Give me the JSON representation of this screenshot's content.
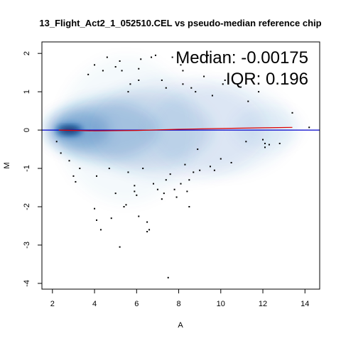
{
  "chart_data": {
    "type": "scatter",
    "title": "13_Flight_Act2_1_052510.CEL vs pseudo-median reference chip",
    "xlabel": "A",
    "ylabel": "M",
    "xlim": [
      1.5,
      14.7
    ],
    "ylim": [
      -4.15,
      2.3
    ],
    "x_ticks": [
      2,
      4,
      6,
      8,
      10,
      12,
      14
    ],
    "y_ticks": [
      2,
      1,
      0,
      -1,
      -2,
      -3,
      -4
    ],
    "annotations": {
      "median_label": "Median: -0.00175",
      "iqr_label": "IQR: 0.196"
    },
    "reference_line": {
      "y": 0,
      "color": "#0000cc"
    },
    "loess_line": {
      "color": "#dd0000",
      "points": [
        [
          2.3,
          0.0
        ],
        [
          4,
          -0.02
        ],
        [
          6,
          -0.01
        ],
        [
          8,
          0.02
        ],
        [
          10,
          0.04
        ],
        [
          12,
          0.06
        ],
        [
          13.4,
          0.07
        ]
      ]
    },
    "density": {
      "color": "#2a6db5",
      "peak": [
        2.8,
        0.0
      ],
      "blobs": [
        {
          "x": 2.8,
          "y": 0.0,
          "rx": 0.7,
          "ry": 0.2,
          "alpha": 1.0
        },
        {
          "x": 3.2,
          "y": 0.0,
          "rx": 1.5,
          "ry": 0.48,
          "alpha": 0.55
        },
        {
          "x": 4.4,
          "y": 0.0,
          "rx": 2.6,
          "ry": 0.75,
          "alpha": 0.38
        },
        {
          "x": 6.0,
          "y": 0.0,
          "rx": 3.6,
          "ry": 1.0,
          "alpha": 0.24
        },
        {
          "x": 8.0,
          "y": 0.02,
          "rx": 4.2,
          "ry": 1.3,
          "alpha": 0.16
        },
        {
          "x": 10.0,
          "y": 0.03,
          "rx": 3.4,
          "ry": 1.2,
          "alpha": 0.11
        },
        {
          "x": 12.2,
          "y": 0.05,
          "rx": 1.6,
          "ry": 0.55,
          "alpha": 0.1
        },
        {
          "x": 5.5,
          "y": 0.0,
          "rx": 3.2,
          "ry": 1.9,
          "alpha": 0.07
        }
      ]
    },
    "outliers": [
      [
        2.4,
        -0.6
      ],
      [
        2.8,
        -0.8
      ],
      [
        3.0,
        -1.2
      ],
      [
        3.1,
        -1.35
      ],
      [
        3.7,
        1.45
      ],
      [
        4.0,
        1.7
      ],
      [
        4.0,
        -2.05
      ],
      [
        4.1,
        -2.35
      ],
      [
        4.3,
        -2.6
      ],
      [
        4.1,
        -1.2
      ],
      [
        4.6,
        1.9
      ],
      [
        4.7,
        -1.0
      ],
      [
        4.8,
        -2.3
      ],
      [
        5.0,
        -1.65
      ],
      [
        5.0,
        1.65
      ],
      [
        5.2,
        1.8
      ],
      [
        5.3,
        1.55
      ],
      [
        5.4,
        -2.0
      ],
      [
        5.5,
        -1.95
      ],
      [
        5.6,
        -1.1
      ],
      [
        5.6,
        1.0
      ],
      [
        5.7,
        1.2
      ],
      [
        5.9,
        -1.6
      ],
      [
        5.9,
        -1.45
      ],
      [
        6.0,
        -1.7
      ],
      [
        6.1,
        -2.25
      ],
      [
        6.1,
        1.6
      ],
      [
        6.2,
        1.85
      ],
      [
        6.3,
        -1.0
      ],
      [
        6.5,
        -2.4
      ],
      [
        6.6,
        -2.6
      ],
      [
        6.7,
        1.9
      ],
      [
        6.8,
        -1.4
      ],
      [
        6.9,
        1.95
      ],
      [
        7.0,
        -1.55
      ],
      [
        7.2,
        -1.8
      ],
      [
        7.2,
        1.3
      ],
      [
        7.3,
        -1.65
      ],
      [
        7.4,
        1.1
      ],
      [
        7.4,
        -1.3
      ],
      [
        7.5,
        -3.85
      ],
      [
        7.6,
        -1.15
      ],
      [
        7.7,
        1.9
      ],
      [
        7.8,
        -1.55
      ],
      [
        7.9,
        -1.75
      ],
      [
        8.1,
        -1.4
      ],
      [
        8.2,
        1.2
      ],
      [
        8.2,
        1.55
      ],
      [
        8.3,
        -0.9
      ],
      [
        8.4,
        -1.6
      ],
      [
        8.5,
        -1.3
      ],
      [
        8.5,
        -2.0
      ],
      [
        8.6,
        1.1
      ],
      [
        8.7,
        -1.1
      ],
      [
        8.8,
        1.0
      ],
      [
        8.9,
        -0.5
      ],
      [
        9.0,
        -1.05
      ],
      [
        9.2,
        1.4
      ],
      [
        9.4,
        1.95
      ],
      [
        9.5,
        -0.95
      ],
      [
        9.6,
        0.9
      ],
      [
        9.7,
        -1.05
      ],
      [
        10.0,
        -0.75
      ],
      [
        10.2,
        1.3
      ],
      [
        10.5,
        -0.85
      ],
      [
        11.2,
        -0.3
      ],
      [
        11.3,
        0.75
      ],
      [
        12.0,
        -0.25
      ],
      [
        12.1,
        -0.45
      ],
      [
        12.1,
        -0.35
      ],
      [
        12.3,
        -0.38
      ],
      [
        12.8,
        -0.35
      ],
      [
        13.4,
        0.45
      ],
      [
        14.2,
        0.07
      ],
      [
        2.2,
        -0.3
      ],
      [
        3.3,
        -1.0
      ],
      [
        10.1,
        1.2
      ],
      [
        11.8,
        1.0
      ],
      [
        5.2,
        -3.05
      ],
      [
        6.5,
        -2.65
      ],
      [
        4.4,
        1.55
      ],
      [
        6.1,
        1.3
      ],
      [
        8.1,
        1.7
      ]
    ]
  }
}
